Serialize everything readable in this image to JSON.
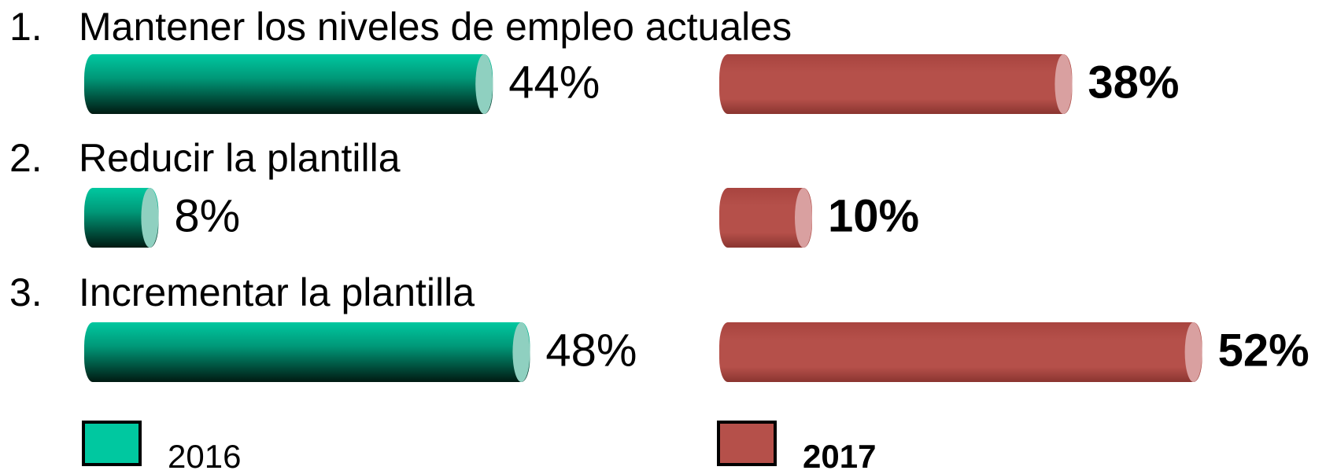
{
  "chart_data": {
    "type": "bar",
    "category_numbers": [
      "1.",
      "2.",
      "3."
    ],
    "categories": [
      "Mantener los niveles de empleo actuales",
      "Reducir la plantilla",
      "Incrementar la plantilla"
    ],
    "series": [
      {
        "name": "2016",
        "color": "#00c8a0",
        "values": [
          44,
          8,
          48
        ],
        "value_labels": [
          "44%",
          "8%",
          "48%"
        ]
      },
      {
        "name": "2017",
        "color": "#b5504a",
        "values": [
          38,
          10,
          52
        ],
        "value_labels": [
          "38%",
          "10%",
          "52%"
        ]
      }
    ]
  }
}
